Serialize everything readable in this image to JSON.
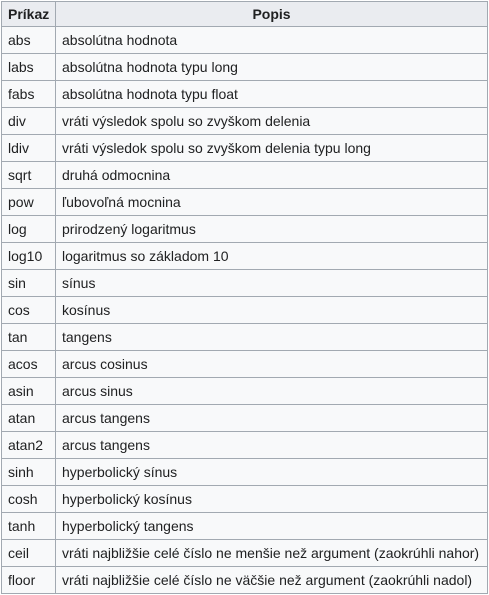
{
  "table": {
    "headers": [
      "Príkaz",
      "Popis"
    ],
    "rows": [
      {
        "cmd": "abs",
        "desc": "absolútna hodnota"
      },
      {
        "cmd": "labs",
        "desc": "absolútna hodnota typu long"
      },
      {
        "cmd": "fabs",
        "desc": "absolútna hodnota typu float"
      },
      {
        "cmd": "div",
        "desc": "vráti výsledok spolu so zvyškom delenia"
      },
      {
        "cmd": "ldiv",
        "desc": "vráti výsledok spolu so zvyškom delenia typu long"
      },
      {
        "cmd": "sqrt",
        "desc": "druhá odmocnina"
      },
      {
        "cmd": "pow",
        "desc": "ľubovoľná mocnina"
      },
      {
        "cmd": "log",
        "desc": "prirodzený logaritmus"
      },
      {
        "cmd": "log10",
        "desc": "logaritmus so základom 10"
      },
      {
        "cmd": "sin",
        "desc": "sínus"
      },
      {
        "cmd": "cos",
        "desc": "kosínus"
      },
      {
        "cmd": "tan",
        "desc": "tangens"
      },
      {
        "cmd": "acos",
        "desc": "arcus cosinus"
      },
      {
        "cmd": "asin",
        "desc": "arcus sinus"
      },
      {
        "cmd": "atan",
        "desc": "arcus tangens"
      },
      {
        "cmd": "atan2",
        "desc": "arcus tangens"
      },
      {
        "cmd": "sinh",
        "desc": "hyperbolický sínus"
      },
      {
        "cmd": "cosh",
        "desc": "hyperbolický kosínus"
      },
      {
        "cmd": "tanh",
        "desc": "hyperbolický tangens"
      },
      {
        "cmd": "ceil",
        "desc": "vráti najbližšie celé číslo ne menšie než argument (zaokrúhli nahor)"
      },
      {
        "cmd": "floor",
        "desc": "vráti najbližšie celé číslo ne väčšie než argument (zaokrúhli nadol)"
      }
    ]
  }
}
